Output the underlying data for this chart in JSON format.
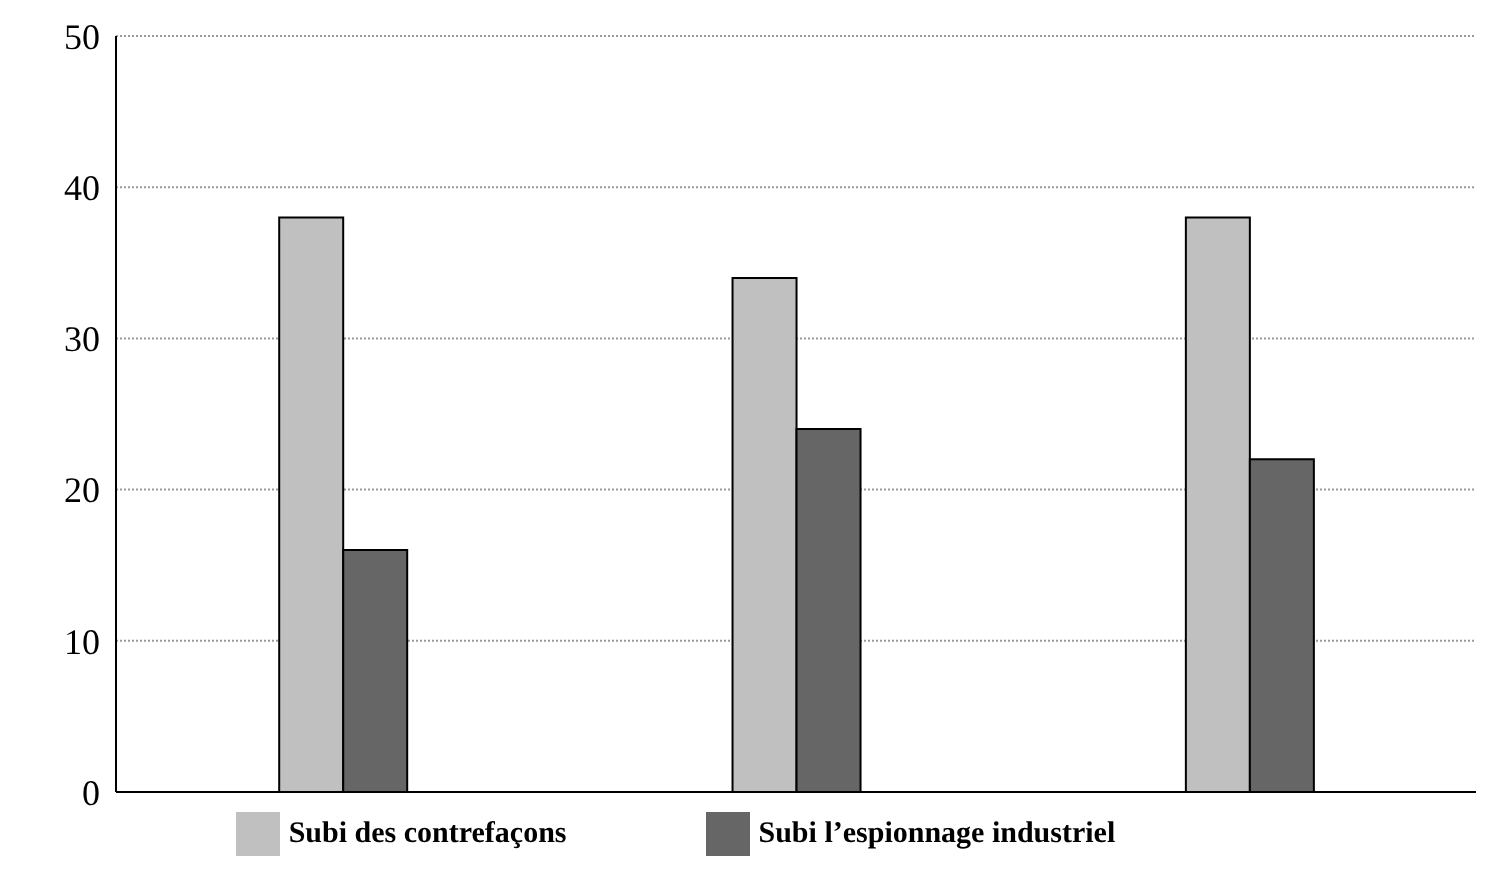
{
  "chart_data": {
    "type": "bar",
    "categories": [
      null,
      null,
      null
    ],
    "series": [
      {
        "name": "Subi  des contrefaçons",
        "color": "#c0c0c0",
        "values": [
          38,
          34,
          38
        ]
      },
      {
        "name": "Subi  l’espionnage industriel",
        "color": "#666666",
        "values": [
          16,
          24,
          22
        ]
      }
    ],
    "ylim": [
      0,
      50
    ],
    "yticks": [
      0,
      10,
      20,
      30,
      40,
      50
    ],
    "grid": "y",
    "legend": "bottom"
  }
}
